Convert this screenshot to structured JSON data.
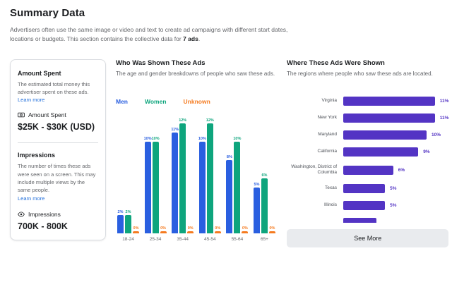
{
  "header": {
    "title": "Summary Data",
    "desc_prefix": "Advertisers often use the same image or video and text to create ad campaigns with different start dates, locations or budgets. This section contains the collective data for ",
    "desc_bold": "7 ads",
    "desc_suffix": "."
  },
  "spend_card": {
    "amount_spent": {
      "heading": "Amount Spent",
      "description": "The estimated total money this advertiser spent on these ads. ",
      "learn_more_label": "Learn more",
      "stat_icon": "banknote-icon",
      "stat_label": "Amount Spent",
      "value": "$25K - $30K (USD)"
    },
    "impressions": {
      "heading": "Impressions",
      "description": "The number of times these ads were seen on a screen. This may include multiple views by the same people.",
      "learn_more_label": "Learn more",
      "stat_icon": "eye-icon",
      "stat_label": "Impressions",
      "value": "700K - 800K"
    }
  },
  "demographics": {
    "heading": "Who Was Shown These Ads",
    "description": "The age and gender breakdowns of people who saw these ads."
  },
  "regions": {
    "heading": "Where These Ads Were Shown",
    "description": "The regions where people who saw these ads are located.",
    "see_more_label": "See More"
  },
  "colors": {
    "men": "#2a5fe0",
    "women": "#0ea57d",
    "unknown": "#f57b20",
    "region_bar": "#5334c4",
    "link": "#216fdb"
  },
  "chart_data": [
    {
      "name": "age_gender",
      "type": "bar",
      "title": "Who Was Shown These Ads",
      "categories": [
        "18-24",
        "25-34",
        "35-44",
        "45-54",
        "55-64",
        "65+"
      ],
      "series": [
        {
          "name": "Men",
          "color": "#2a5fe0",
          "values": [
            2,
            10,
            11,
            10,
            8,
            5
          ]
        },
        {
          "name": "Women",
          "color": "#0ea57d",
          "values": [
            2,
            10,
            12,
            12,
            10,
            6
          ]
        },
        {
          "name": "Unknown",
          "color": "#f57b20",
          "values": [
            0,
            0,
            0,
            0,
            0,
            0
          ]
        }
      ],
      "value_label_format": "{v}%",
      "legend_position": "top",
      "grid": false,
      "ylim": [
        0,
        12
      ]
    },
    {
      "name": "regions",
      "type": "bar-horizontal",
      "title": "Where These Ads Were Shown",
      "bar_color": "#5334c4",
      "categories": [
        "Virginia",
        "New York",
        "Maryland",
        "California",
        "Washington, District of Columbia",
        "Texas",
        "Illinois",
        ""
      ],
      "values": [
        11,
        11,
        10,
        9,
        6,
        5,
        5,
        4
      ],
      "value_label_format": "{v}%",
      "partial_last_row": true,
      "grid": false,
      "xlim": [
        0,
        12
      ]
    }
  ]
}
